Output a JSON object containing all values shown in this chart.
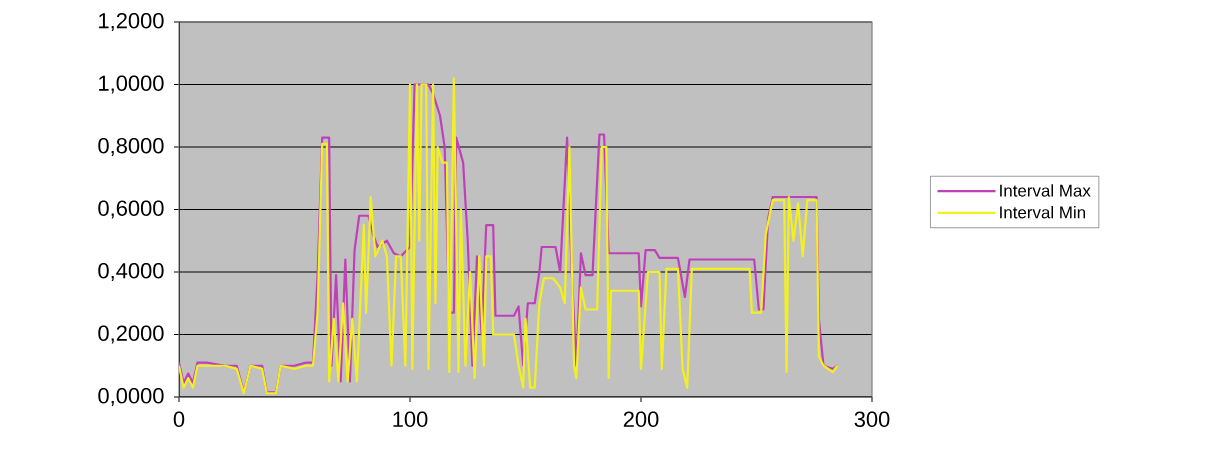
{
  "chart_data": {
    "type": "line",
    "xlim": [
      0,
      300
    ],
    "ylim": [
      0,
      1.2
    ],
    "xticks": [
      0,
      100,
      200,
      300
    ],
    "yticks": [
      {
        "value": 0,
        "label": "0,0000"
      },
      {
        "value": 0.2,
        "label": "0,2000"
      },
      {
        "value": 0.4,
        "label": "0,4000"
      },
      {
        "value": 0.6,
        "label": "0,6000"
      },
      {
        "value": 0.8,
        "label": "0,8000"
      },
      {
        "value": 1.0,
        "label": "1,0000"
      },
      {
        "value": 1.2,
        "label": "1,2000"
      }
    ],
    "grid": "y",
    "legend": "right",
    "marker": "none",
    "line_style": "solid",
    "series": [
      {
        "name": "Interval Max",
        "color": "#c040b8",
        "x": [
          0,
          2,
          4,
          6,
          8,
          12,
          20,
          25,
          28,
          31,
          36,
          38,
          42,
          44,
          50,
          55,
          58,
          60,
          62,
          65,
          66,
          68,
          70,
          72,
          74,
          76,
          78,
          82,
          84,
          86,
          90,
          93,
          96,
          100,
          102,
          108,
          110,
          113,
          115,
          117,
          119,
          120,
          123,
          125,
          127,
          129,
          131,
          133,
          136,
          137,
          145,
          147,
          149,
          151,
          154,
          156,
          157,
          163,
          165,
          168,
          170,
          172,
          174,
          176,
          179,
          182,
          184,
          186,
          199,
          200,
          202,
          206,
          208,
          216,
          219,
          221,
          249,
          251,
          253,
          255,
          257,
          276,
          277,
          279,
          283,
          285
        ],
        "values": [
          0.11,
          0.045,
          0.075,
          0.045,
          0.11,
          0.11,
          0.1,
          0.1,
          0.015,
          0.1,
          0.1,
          0.015,
          0.015,
          0.1,
          0.1,
          0.11,
          0.11,
          0.39,
          0.83,
          0.83,
          0.1,
          0.39,
          0.05,
          0.44,
          0.05,
          0.47,
          0.58,
          0.58,
          0.52,
          0.48,
          0.5,
          0.46,
          0.45,
          0.48,
          1.0,
          1.0,
          0.97,
          0.9,
          0.8,
          0.27,
          0.27,
          0.83,
          0.75,
          0.5,
          0.1,
          0.45,
          0.2,
          0.55,
          0.55,
          0.26,
          0.26,
          0.29,
          0.1,
          0.3,
          0.3,
          0.4,
          0.48,
          0.48,
          0.4,
          0.83,
          0.4,
          0.1,
          0.46,
          0.39,
          0.39,
          0.84,
          0.84,
          0.46,
          0.46,
          0.29,
          0.47,
          0.47,
          0.445,
          0.445,
          0.32,
          0.44,
          0.44,
          0.28,
          0.28,
          0.57,
          0.64,
          0.64,
          0.25,
          0.1,
          0.09,
          0.1
        ]
      },
      {
        "name": "Interval Min",
        "color": "#f2f020",
        "x": [
          0,
          2,
          4,
          6,
          8,
          12,
          20,
          25,
          28,
          31,
          36,
          38,
          42,
          44,
          50,
          55,
          58,
          60,
          62,
          64,
          65,
          67,
          69,
          71,
          73,
          75,
          77,
          80,
          81,
          83,
          85,
          88,
          90,
          92,
          94,
          96,
          98,
          100,
          101,
          103,
          104,
          105,
          107,
          108,
          110,
          111,
          112,
          114,
          116,
          117,
          119,
          121,
          122,
          124,
          126,
          128,
          130,
          132,
          133,
          135,
          136,
          145,
          147,
          149,
          150,
          152,
          154,
          156,
          158,
          162,
          165,
          167,
          169,
          171,
          172,
          174,
          176,
          181,
          183,
          185,
          186,
          187,
          199,
          200,
          203,
          208,
          209,
          211,
          216,
          218,
          220,
          222,
          247,
          248,
          252,
          254,
          257,
          262,
          263,
          264,
          266,
          268,
          270,
          272,
          276,
          277,
          279,
          283,
          285
        ],
        "values": [
          0.1,
          0.03,
          0.06,
          0.03,
          0.1,
          0.1,
          0.1,
          0.09,
          0.012,
          0.1,
          0.09,
          0.012,
          0.012,
          0.1,
          0.09,
          0.1,
          0.1,
          0.27,
          0.81,
          0.81,
          0.05,
          0.25,
          0.05,
          0.3,
          0.05,
          0.25,
          0.05,
          0.55,
          0.27,
          0.64,
          0.45,
          0.5,
          0.45,
          0.1,
          0.45,
          0.45,
          0.1,
          1.0,
          0.09,
          1.0,
          0.5,
          1.0,
          1.0,
          0.09,
          1.0,
          0.3,
          0.8,
          0.75,
          0.75,
          0.08,
          1.02,
          0.08,
          0.6,
          0.1,
          0.4,
          0.06,
          0.45,
          0.1,
          0.45,
          0.45,
          0.2,
          0.2,
          0.1,
          0.03,
          0.25,
          0.03,
          0.03,
          0.3,
          0.38,
          0.38,
          0.35,
          0.3,
          0.8,
          0.1,
          0.06,
          0.35,
          0.28,
          0.28,
          0.8,
          0.8,
          0.06,
          0.34,
          0.34,
          0.09,
          0.4,
          0.4,
          0.09,
          0.41,
          0.41,
          0.09,
          0.03,
          0.41,
          0.41,
          0.27,
          0.27,
          0.52,
          0.63,
          0.63,
          0.08,
          0.64,
          0.5,
          0.62,
          0.45,
          0.63,
          0.63,
          0.13,
          0.1,
          0.08,
          0.1
        ]
      }
    ]
  }
}
